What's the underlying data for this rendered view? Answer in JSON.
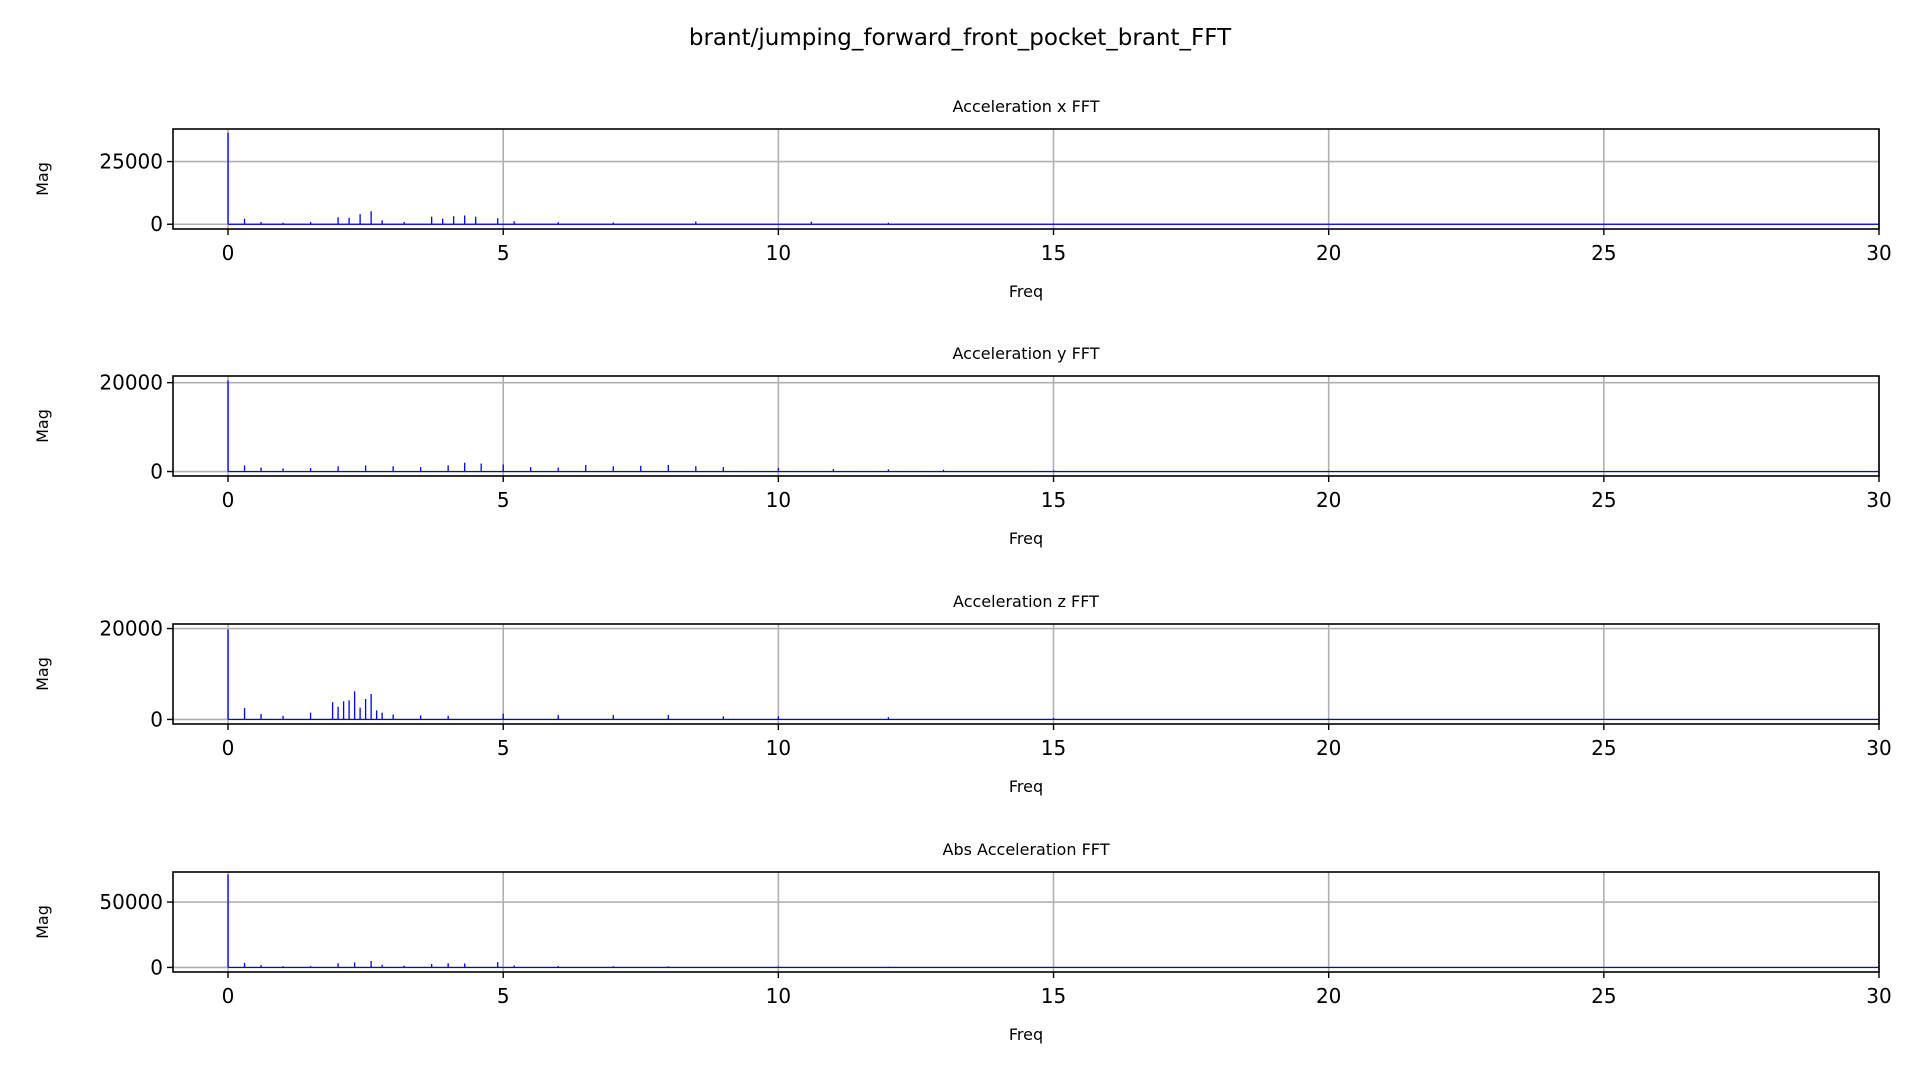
{
  "figure": {
    "title": "brant/jumping_forward_front_pocket_brant_FFT",
    "line_color": "#0000ff",
    "grid_color": "#b0b0b0"
  },
  "chart_data": [
    {
      "type": "line",
      "title": "Acceleration x FFT",
      "xlabel": "Freq",
      "ylabel": "Mag",
      "xlim": [
        -1,
        30
      ],
      "ylim": [
        -1900,
        38000
      ],
      "xticks": [
        0,
        5,
        10,
        15,
        20,
        25,
        30
      ],
      "yticks": [
        0,
        25000
      ],
      "grid": true,
      "series": [
        {
          "x": [
            0,
            0.3,
            0.6,
            1.0,
            1.5,
            2.0,
            2.2,
            2.4,
            2.6,
            2.8,
            3.2,
            3.7,
            3.9,
            4.1,
            4.3,
            4.5,
            4.9,
            5.2,
            6.0,
            7.0,
            8.5,
            10.6,
            12.0,
            15.0,
            20.0,
            25.0,
            30.0
          ],
          "y": [
            36500,
            2200,
            900,
            600,
            900,
            2800,
            2600,
            4000,
            5200,
            1600,
            900,
            3000,
            2200,
            3200,
            3500,
            3000,
            2400,
            1200,
            800,
            700,
            1100,
            1000,
            600,
            300,
            150,
            100,
            80
          ]
        }
      ]
    },
    {
      "type": "line",
      "title": "Acceleration y FFT",
      "xlabel": "Freq",
      "ylabel": "Mag",
      "xlim": [
        -1,
        30
      ],
      "ylim": [
        -1000,
        21500
      ],
      "xticks": [
        0,
        5,
        10,
        15,
        20,
        25,
        30
      ],
      "yticks": [
        0,
        20000
      ],
      "grid": true,
      "series": [
        {
          "x": [
            0,
            0.3,
            0.6,
            1.0,
            1.5,
            2.0,
            2.5,
            3.0,
            3.5,
            4.0,
            4.3,
            4.6,
            5.0,
            5.5,
            6.0,
            6.5,
            7.0,
            7.5,
            8.0,
            8.5,
            9.0,
            10.0,
            11.0,
            12.0,
            13.0,
            15.0,
            20.0,
            25.0,
            30.0
          ],
          "y": [
            20500,
            1400,
            900,
            700,
            800,
            1200,
            1400,
            1200,
            1000,
            1400,
            2000,
            1800,
            1600,
            1000,
            900,
            1500,
            1200,
            1300,
            1500,
            1200,
            1000,
            800,
            600,
            500,
            400,
            250,
            150,
            100,
            80
          ]
        }
      ]
    },
    {
      "type": "line",
      "title": "Acceleration z FFT",
      "xlabel": "Freq",
      "ylabel": "Mag",
      "xlim": [
        -1,
        30
      ],
      "ylim": [
        -1000,
        21000
      ],
      "xticks": [
        0,
        5,
        10,
        15,
        20,
        25,
        30
      ],
      "yticks": [
        0,
        20000
      ],
      "grid": true,
      "series": [
        {
          "x": [
            0,
            0.3,
            0.6,
            1.0,
            1.5,
            1.9,
            2.0,
            2.1,
            2.2,
            2.3,
            2.4,
            2.5,
            2.6,
            2.7,
            2.8,
            3.0,
            3.5,
            4.0,
            5.0,
            6.0,
            7.0,
            8.0,
            9.0,
            10.0,
            12.0,
            15.0,
            20.0,
            25.0,
            30.0
          ],
          "y": [
            19800,
            2500,
            1200,
            800,
            1500,
            3800,
            2800,
            4000,
            4200,
            6200,
            2600,
            4500,
            5600,
            2000,
            1500,
            1100,
            900,
            800,
            1300,
            1000,
            1000,
            1000,
            700,
            700,
            500,
            300,
            150,
            100,
            80
          ]
        }
      ]
    },
    {
      "type": "line",
      "title": "Abs Acceleration FFT",
      "xlabel": "Freq",
      "ylabel": "Mag",
      "xlim": [
        -1,
        30
      ],
      "ylim": [
        -3500,
        73000
      ],
      "xticks": [
        0,
        5,
        10,
        15,
        20,
        25,
        30
      ],
      "yticks": [
        0,
        50000
      ],
      "grid": true,
      "series": [
        {
          "x": [
            0,
            0.3,
            0.6,
            1.0,
            1.5,
            2.0,
            2.3,
            2.6,
            2.8,
            3.2,
            3.7,
            4.0,
            4.3,
            4.9,
            5.2,
            6.0,
            7.0,
            8.0,
            10.0,
            12.0,
            15.0,
            20.0,
            25.0,
            30.0
          ],
          "y": [
            71000,
            3500,
            1800,
            900,
            1000,
            3200,
            3800,
            5000,
            2000,
            1400,
            2600,
            3200,
            3000,
            4000,
            1500,
            1100,
            900,
            800,
            700,
            500,
            300,
            150,
            100,
            80
          ]
        }
      ]
    }
  ]
}
